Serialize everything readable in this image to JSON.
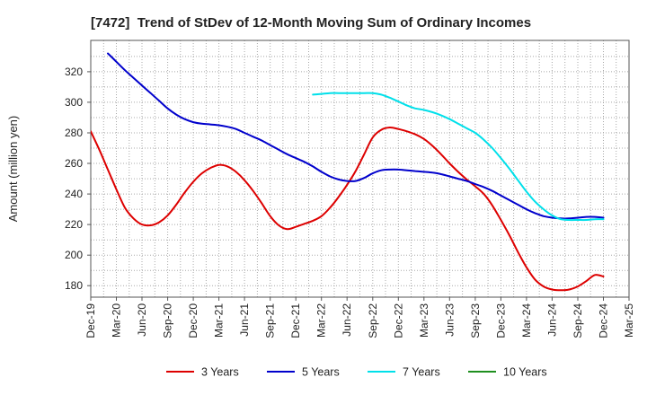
{
  "chart_data": {
    "type": "line",
    "title": "[7472]  Trend of StDev of 12-Month Moving Sum of Ordinary Incomes",
    "xlabel": "",
    "ylabel": "Amount (million yen)",
    "x_ticks": [
      "Dec-19",
      "Mar-20",
      "Jun-20",
      "Sep-20",
      "Dec-20",
      "Mar-21",
      "Jun-21",
      "Sep-21",
      "Dec-21",
      "Mar-22",
      "Jun-22",
      "Sep-22",
      "Dec-22",
      "Mar-23",
      "Jun-23",
      "Sep-23",
      "Dec-23",
      "Mar-24",
      "Jun-24",
      "Sep-24",
      "Dec-24",
      "Mar-25"
    ],
    "x_tick_step_months": 3,
    "xlim": [
      0,
      63
    ],
    "yticks": [
      180,
      200,
      220,
      240,
      260,
      280,
      300,
      320
    ],
    "ylim": [
      172.5,
      340.5
    ],
    "grid": true,
    "legend_position": "bottom",
    "series": [
      {
        "name": "3 Years",
        "color": "#dd0000",
        "start_month": 0,
        "values": [
          281,
          269,
          256,
          243,
          231,
          224,
          220,
          219.5,
          221.5,
          226,
          233,
          241,
          248,
          253.5,
          257,
          259,
          258,
          254.5,
          249,
          242,
          234,
          225.5,
          219.5,
          217,
          218.5,
          220.5,
          222.5,
          225.5,
          231,
          238,
          246,
          255,
          266,
          277,
          282,
          283.5,
          282.5,
          281,
          279,
          276,
          271.5,
          266,
          260,
          254.5,
          249.5,
          245,
          240,
          232.5,
          223,
          213,
          202,
          192,
          184,
          179.5,
          177.5,
          177,
          177.5,
          179.5,
          183,
          187,
          186
        ]
      },
      {
        "name": "5 Years",
        "color": "#0000cc",
        "start_month": 2,
        "values": [
          332,
          326.5,
          321,
          316,
          311,
          306,
          301,
          296,
          292,
          289,
          287,
          286,
          285.5,
          285,
          284,
          282.5,
          280,
          277.5,
          275,
          272,
          269,
          266,
          263.5,
          261,
          258,
          254.5,
          251.5,
          249.5,
          248.5,
          248.5,
          250.5,
          253.5,
          255.5,
          256,
          256,
          255.5,
          255,
          254.5,
          254,
          253,
          251.5,
          250,
          248.5,
          246.5,
          244.5,
          242,
          239,
          236,
          233,
          230,
          227.5,
          225.5,
          224.5,
          224,
          224,
          224.5,
          225,
          225,
          224.5
        ]
      },
      {
        "name": "7 Years",
        "color": "#00e0ea",
        "start_month": 26,
        "values": [
          305,
          305.5,
          306,
          306,
          306,
          306,
          306,
          306,
          305,
          303,
          300.5,
          298,
          296,
          295,
          293.5,
          291.5,
          289,
          286,
          283,
          280,
          275.5,
          270,
          263.5,
          256.5,
          249,
          241.5,
          235,
          230,
          226,
          223.5,
          223,
          223,
          223,
          223.5,
          223.5
        ]
      },
      {
        "name": "10 Years",
        "color": "#1f8f1f",
        "values": []
      }
    ]
  }
}
